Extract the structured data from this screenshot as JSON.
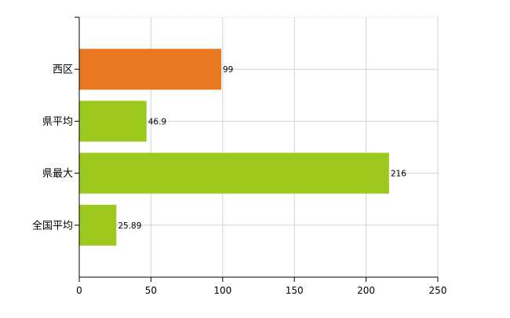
{
  "chart_data": {
    "type": "bar",
    "orientation": "horizontal",
    "categories": [
      "西区",
      "県平均",
      "県最大",
      "全国平均"
    ],
    "values": [
      99,
      46.9,
      216,
      25.89
    ],
    "value_labels": [
      "99",
      "46.9",
      "216",
      "25.89"
    ],
    "bar_colors": [
      "#E87722",
      "#9DC91E",
      "#9DC91E",
      "#9DC91E"
    ],
    "xlim": [
      0,
      250
    ],
    "x_ticks": [
      0,
      50,
      100,
      150,
      200,
      250
    ],
    "x_tick_labels": [
      "0",
      "50",
      "100",
      "150",
      "200",
      "250"
    ],
    "grid": true,
    "legend": "none",
    "title": "",
    "xlabel": "",
    "ylabel": ""
  }
}
